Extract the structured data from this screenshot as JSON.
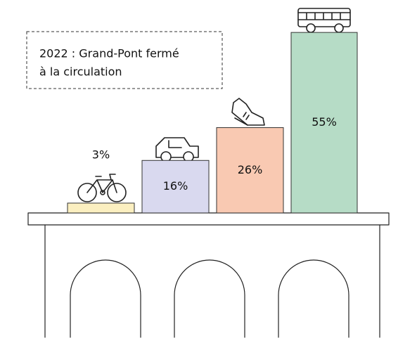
{
  "chart_data": {
    "type": "bar",
    "annotation": [
      "2022 : Grand-Pont fermé",
      "à la circulation"
    ],
    "values": [
      3,
      16,
      26,
      55
    ],
    "value_labels": [
      "3%",
      "16%",
      "26%",
      "55%"
    ],
    "colors": [
      "#fbefc0",
      "#d9d9ef",
      "#f9c9b2",
      "#b6dcc6"
    ]
  }
}
